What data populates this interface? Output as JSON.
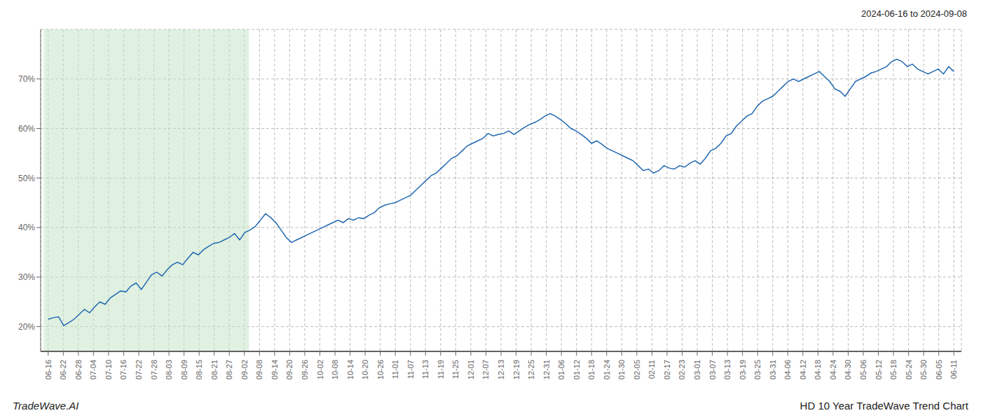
{
  "chart_data": {
    "type": "line",
    "title": "2024-06-16 to 2024-09-08",
    "annotations": [
      "TradeWave.AI",
      "HD 10 Year TradeWave Trend Chart"
    ],
    "color": "#2068b0",
    "grid": true,
    "highlight": {
      "x": [
        -0.3,
        13.3
      ],
      "color": "#c8e6c9"
    },
    "xlim": [
      -0.5,
      60.5
    ],
    "xticks": [
      {
        "value": 0,
        "label": "06-16"
      },
      {
        "value": 1,
        "label": "06-22"
      },
      {
        "value": 2,
        "label": "06-28"
      },
      {
        "value": 3,
        "label": "07-04"
      },
      {
        "value": 4,
        "label": "07-10"
      },
      {
        "value": 5,
        "label": "07-16"
      },
      {
        "value": 6,
        "label": "07-22"
      },
      {
        "value": 7,
        "label": "07-28"
      },
      {
        "value": 8,
        "label": "08-03"
      },
      {
        "value": 9,
        "label": "08-09"
      },
      {
        "value": 10,
        "label": "08-15"
      },
      {
        "value": 11,
        "label": "08-21"
      },
      {
        "value": 12,
        "label": "08-27"
      },
      {
        "value": 13,
        "label": "09-02"
      },
      {
        "value": 14,
        "label": "09-08"
      },
      {
        "value": 15,
        "label": "09-14"
      },
      {
        "value": 16,
        "label": "09-20"
      },
      {
        "value": 17,
        "label": "09-26"
      },
      {
        "value": 18,
        "label": "10-02"
      },
      {
        "value": 19,
        "label": "10-08"
      },
      {
        "value": 20,
        "label": "10-14"
      },
      {
        "value": 21,
        "label": "10-20"
      },
      {
        "value": 22,
        "label": "10-26"
      },
      {
        "value": 23,
        "label": "11-01"
      },
      {
        "value": 24,
        "label": "11-07"
      },
      {
        "value": 25,
        "label": "11-13"
      },
      {
        "value": 26,
        "label": "11-19"
      },
      {
        "value": 27,
        "label": "11-25"
      },
      {
        "value": 28,
        "label": "12-01"
      },
      {
        "value": 29,
        "label": "12-07"
      },
      {
        "value": 30,
        "label": "12-13"
      },
      {
        "value": 31,
        "label": "12-19"
      },
      {
        "value": 32,
        "label": "12-25"
      },
      {
        "value": 33,
        "label": "12-31"
      },
      {
        "value": 34,
        "label": "01-06"
      },
      {
        "value": 35,
        "label": "01-12"
      },
      {
        "value": 36,
        "label": "01-18"
      },
      {
        "value": 37,
        "label": "01-24"
      },
      {
        "value": 38,
        "label": "01-30"
      },
      {
        "value": 39,
        "label": "02-05"
      },
      {
        "value": 40,
        "label": "02-11"
      },
      {
        "value": 41,
        "label": "02-17"
      },
      {
        "value": 42,
        "label": "02-23"
      },
      {
        "value": 43,
        "label": "03-01"
      },
      {
        "value": 44,
        "label": "03-07"
      },
      {
        "value": 45,
        "label": "03-13"
      },
      {
        "value": 46,
        "label": "03-19"
      },
      {
        "value": 47,
        "label": "03-25"
      },
      {
        "value": 48,
        "label": "03-31"
      },
      {
        "value": 49,
        "label": "04-06"
      },
      {
        "value": 50,
        "label": "04-12"
      },
      {
        "value": 51,
        "label": "04-18"
      },
      {
        "value": 52,
        "label": "04-24"
      },
      {
        "value": 53,
        "label": "04-30"
      },
      {
        "value": 54,
        "label": "05-06"
      },
      {
        "value": 55,
        "label": "05-12"
      },
      {
        "value": 56,
        "label": "05-18"
      },
      {
        "value": 57,
        "label": "05-24"
      },
      {
        "value": 58,
        "label": "05-30"
      },
      {
        "value": 59,
        "label": "06-05"
      },
      {
        "value": 60,
        "label": "06-11"
      }
    ],
    "ylim": [
      15,
      80
    ],
    "yticks": [
      {
        "value": 20,
        "label": "20%"
      },
      {
        "value": 30,
        "label": "30%"
      },
      {
        "value": 40,
        "label": "40%"
      },
      {
        "value": 50,
        "label": "50%"
      },
      {
        "value": 60,
        "label": "60%"
      },
      {
        "value": 70,
        "label": "70%"
      }
    ],
    "x": [
      0,
      0.3429,
      0.6857,
      1.0286,
      1.3714,
      1.7143,
      2.0571,
      2.4,
      2.7429,
      3.0857,
      3.4286,
      3.7714,
      4.1143,
      4.4571,
      4.8,
      5.1429,
      5.4857,
      5.8286,
      6.1714,
      6.5143,
      6.8571,
      7.2,
      7.5429,
      7.8857,
      8.2286,
      8.5714,
      8.9143,
      9.2571,
      9.6,
      9.9429,
      10.2857,
      10.6286,
      10.9714,
      11.3143,
      11.6571,
      12,
      12.3429,
      12.6857,
      13.0286,
      13.3714,
      13.7143,
      14.0571,
      14.4,
      14.7429,
      15.0857,
      15.4286,
      15.7714,
      16.1143,
      16.4571,
      16.8,
      17.1429,
      17.4857,
      17.8286,
      18.1714,
      18.5143,
      18.8571,
      19.2,
      19.5429,
      19.8857,
      20.2286,
      20.5714,
      20.9143,
      21.2571,
      21.6,
      21.9429,
      22.2857,
      22.6286,
      22.9714,
      23.3143,
      23.6571,
      24,
      24.3429,
      24.6857,
      25.0286,
      25.3714,
      25.7143,
      26.0571,
      26.4,
      26.7429,
      27.0857,
      27.4286,
      27.7714,
      28.1143,
      28.4571,
      28.8,
      29.1429,
      29.4857,
      29.8286,
      30.1714,
      30.5143,
      30.8571,
      31.2,
      31.5429,
      31.8857,
      32.2286,
      32.5714,
      32.9143,
      33.2571,
      33.6,
      33.9429,
      34.2857,
      34.6286,
      34.9714,
      35.3143,
      35.6571,
      36,
      36.3429,
      36.6857,
      37.0286,
      37.3714,
      37.7143,
      38.0571,
      38.4,
      38.7429,
      39.0857,
      39.4286,
      39.7714,
      40.1143,
      40.4571,
      40.8,
      41.1429,
      41.4857,
      41.8286,
      42.1714,
      42.5143,
      42.8571,
      43.2,
      43.5429,
      43.8857,
      44.2286,
      44.5714,
      44.9143,
      45.2571,
      45.6,
      45.9429,
      46.2857,
      46.6286,
      46.9714,
      47.3143,
      47.6571,
      48,
      48.3429,
      48.6857,
      49.0286,
      49.3714,
      49.7143,
      50.0571,
      50.4,
      50.7429,
      51.0857,
      51.4286,
      51.7714,
      52.1143,
      52.4571,
      52.8,
      53.1429,
      53.4857,
      53.8286,
      54.1714,
      54.5143,
      54.8571,
      55.2,
      55.5429,
      55.8857,
      56.2286,
      56.5714,
      56.9143,
      57.2571,
      57.6,
      57.9429,
      58.2857,
      58.6286,
      58.9714,
      59.3143,
      59.6571,
      60
    ],
    "values": [
      21.5,
      21.8,
      22.0,
      20.2,
      20.8,
      21.5,
      22.5,
      23.5,
      22.8,
      24.0,
      25.0,
      24.5,
      25.8,
      26.5,
      27.2,
      27.0,
      28.2,
      28.8,
      27.5,
      29.0,
      30.5,
      31.0,
      30.2,
      31.5,
      32.5,
      33.0,
      32.5,
      33.8,
      35.0,
      34.5,
      35.5,
      36.2,
      36.8,
      37.0,
      37.5,
      38.0,
      38.8,
      37.5,
      39.0,
      39.5,
      40.2,
      41.5,
      42.8,
      42.0,
      41.0,
      39.5,
      38.0,
      37.0,
      37.5,
      38.0,
      38.5,
      39.0,
      39.5,
      40.0,
      40.5,
      41.0,
      41.5,
      41.0,
      41.8,
      41.5,
      42.0,
      41.8,
      42.5,
      43.0,
      44.0,
      44.5,
      44.8,
      45.0,
      45.5,
      46.0,
      46.5,
      47.5,
      48.5,
      49.5,
      50.5,
      51.0,
      52.0,
      53.0,
      54.0,
      54.5,
      55.5,
      56.5,
      57.0,
      57.5,
      58.0,
      59.0,
      58.5,
      58.8,
      59.0,
      59.5,
      58.8,
      59.5,
      60.2,
      60.8,
      61.2,
      61.8,
      62.5,
      63.0,
      62.5,
      61.8,
      61.0,
      60.0,
      59.5,
      58.8,
      58.0,
      57.0,
      57.5,
      56.8,
      56.0,
      55.5,
      55.0,
      54.5,
      54.0,
      53.5,
      52.5,
      51.5,
      51.8,
      51.0,
      51.5,
      52.5,
      52.0,
      51.8,
      52.5,
      52.2,
      53.0,
      53.5,
      52.8,
      54.0,
      55.5,
      56.0,
      57.0,
      58.5,
      59.0,
      60.5,
      61.5,
      62.5,
      63.0,
      64.5,
      65.5,
      66.0,
      66.5,
      67.5,
      68.5,
      69.5,
      70.0,
      69.5,
      70.0,
      70.5,
      71.0,
      71.5,
      70.5,
      69.5,
      68.0,
      67.5,
      66.5,
      68.0,
      69.5,
      70.0,
      70.5,
      71.2,
      71.5,
      72.0,
      72.5,
      73.5,
      74.0,
      73.5,
      72.5,
      73.0,
      72.0,
      71.5,
      71.0,
      71.5,
      72.0,
      71.0,
      72.5,
      71.5
    ]
  }
}
